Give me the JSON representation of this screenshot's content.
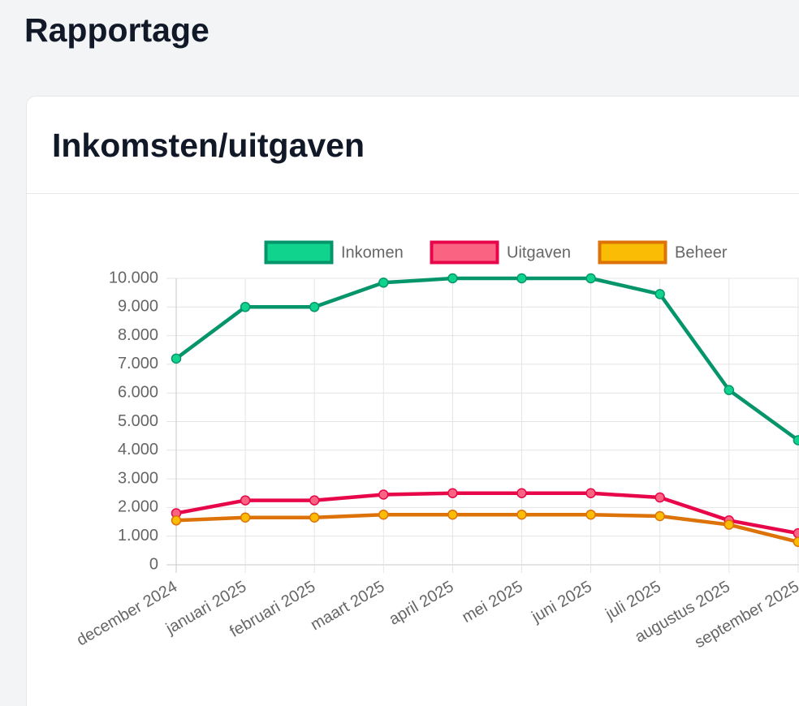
{
  "header": {
    "title": "Rapportage"
  },
  "card": {
    "title": "Inkomsten/uitgaven"
  },
  "chart_data": {
    "type": "line",
    "categories": [
      "december 2024",
      "januari 2025",
      "februari 2025",
      "maart 2025",
      "april 2025",
      "mei 2025",
      "juni 2025",
      "juli 2025",
      "augustus 2025",
      "september 2025"
    ],
    "series": [
      {
        "name": "Inkomen",
        "color": "#05956a",
        "point_color": "#10d48e",
        "values": [
          7200,
          9000,
          9000,
          9850,
          10000,
          10000,
          10000,
          9450,
          6100,
          4350
        ]
      },
      {
        "name": "Uitgaven",
        "color": "#e8064a",
        "point_color": "#fb6383",
        "values": [
          1800,
          2250,
          2250,
          2450,
          2500,
          2500,
          2500,
          2350,
          1550,
          1100
        ]
      },
      {
        "name": "Beheer",
        "color": "#dc7208",
        "point_color": "#fbbc05",
        "values": [
          1550,
          1650,
          1650,
          1750,
          1750,
          1750,
          1750,
          1700,
          1400,
          800
        ]
      }
    ],
    "ylim": [
      0,
      10000
    ],
    "yticks": [
      0,
      {
        "value": 1000,
        "label": "1.000"
      },
      {
        "value": 2000,
        "label": "2.000"
      },
      {
        "value": 3000,
        "label": "3.000"
      },
      {
        "value": 4000,
        "label": "4.000"
      },
      {
        "value": 5000,
        "label": "5.000"
      },
      {
        "value": 6000,
        "label": "6.000"
      },
      {
        "value": 7000,
        "label": "7.000"
      },
      {
        "value": 8000,
        "label": "8.000"
      },
      {
        "value": 9000,
        "label": "9.000"
      },
      {
        "value": 10000,
        "label": "10.000"
      }
    ],
    "grid": true,
    "legend": "top"
  }
}
